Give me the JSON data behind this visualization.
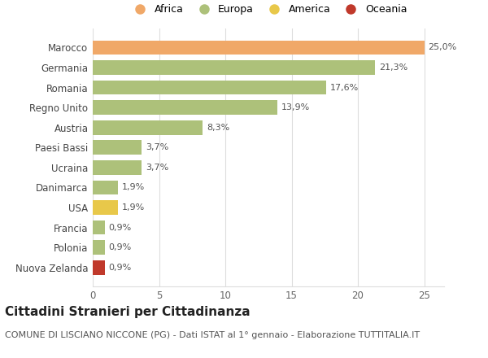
{
  "categories": [
    "Marocco",
    "Germania",
    "Romania",
    "Regno Unito",
    "Austria",
    "Paesi Bassi",
    "Ucraina",
    "Danimarca",
    "USA",
    "Francia",
    "Polonia",
    "Nuova Zelanda"
  ],
  "values": [
    25.0,
    21.3,
    17.6,
    13.9,
    8.3,
    3.7,
    3.7,
    1.9,
    1.9,
    0.9,
    0.9,
    0.9
  ],
  "labels": [
    "25,0%",
    "21,3%",
    "17,6%",
    "13,9%",
    "8,3%",
    "3,7%",
    "3,7%",
    "1,9%",
    "1,9%",
    "0,9%",
    "0,9%",
    "0,9%"
  ],
  "bar_colors": [
    "#f0a868",
    "#adc17a",
    "#adc17a",
    "#adc17a",
    "#adc17a",
    "#adc17a",
    "#adc17a",
    "#adc17a",
    "#e8c84a",
    "#adc17a",
    "#adc17a",
    "#c0392b"
  ],
  "legend_labels": [
    "Africa",
    "Europa",
    "America",
    "Oceania"
  ],
  "legend_colors": [
    "#f0a868",
    "#adc17a",
    "#e8c84a",
    "#c0392b"
  ],
  "title": "Cittadini Stranieri per Cittadinanza",
  "subtitle": "COMUNE DI LISCIANO NICCONE (PG) - Dati ISTAT al 1° gennaio - Elaborazione TUTTITALIA.IT",
  "xlim": [
    0,
    26.5
  ],
  "xticks": [
    0,
    5,
    10,
    15,
    20,
    25
  ],
  "background_color": "#ffffff",
  "grid_color": "#dddddd",
  "title_fontsize": 11,
  "subtitle_fontsize": 8,
  "label_fontsize": 8,
  "tick_fontsize": 8.5,
  "legend_fontsize": 9
}
